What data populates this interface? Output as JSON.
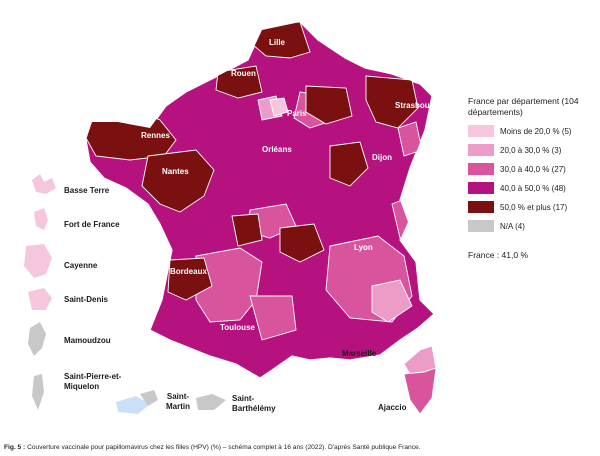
{
  "legend": {
    "title": "France par département (104 départements)",
    "items": [
      {
        "label": "Moins de 20,0 % (5)",
        "color": "#f6c6df"
      },
      {
        "label": "20,0 à 30,0 % (3)",
        "color": "#ec9cc6"
      },
      {
        "label": "30,0 à 40,0 % (27)",
        "color": "#d8559e"
      },
      {
        "label": "40,0 à 50,0 % (48)",
        "color": "#b5117f"
      },
      {
        "label": "50,0 % et plus (17)",
        "color": "#7a1010"
      },
      {
        "label": "N/A (4)",
        "color": "#c8c8c8"
      }
    ],
    "national": "France : 41,0 %"
  },
  "cities": {
    "lille": "Lille",
    "rouen": "Rouen",
    "strasbourg": "Strasbourg",
    "paris": "Paris",
    "rennes": "Rennes",
    "orleans": "Orléans",
    "dijon": "Dijon",
    "nantes": "Nantes",
    "lyon": "Lyon",
    "bordeaux": "Bordeaux",
    "toulouse": "Toulouse",
    "marseille": "Marseille",
    "ajaccio": "Ajaccio"
  },
  "overseas": {
    "basse_terre": "Basse Terre",
    "fort_de_france": "Fort de France",
    "cayenne": "Cayenne",
    "saint_denis": "Saint-Denis",
    "mamoudzou": "Mamoudzou",
    "saint_pierre": "Saint-Pierre-et-Miquelon",
    "saint_martin": "Saint-Martin",
    "saint_barthelemy": "Saint-Barthélémy"
  },
  "caption": {
    "fig": "Fig. 5 :",
    "text": "Couverture vaccinale pour papillomavirus chez les filles (HPV) (%) – schéma complet à 16 ans (2022). D'après Santé publique France."
  }
}
